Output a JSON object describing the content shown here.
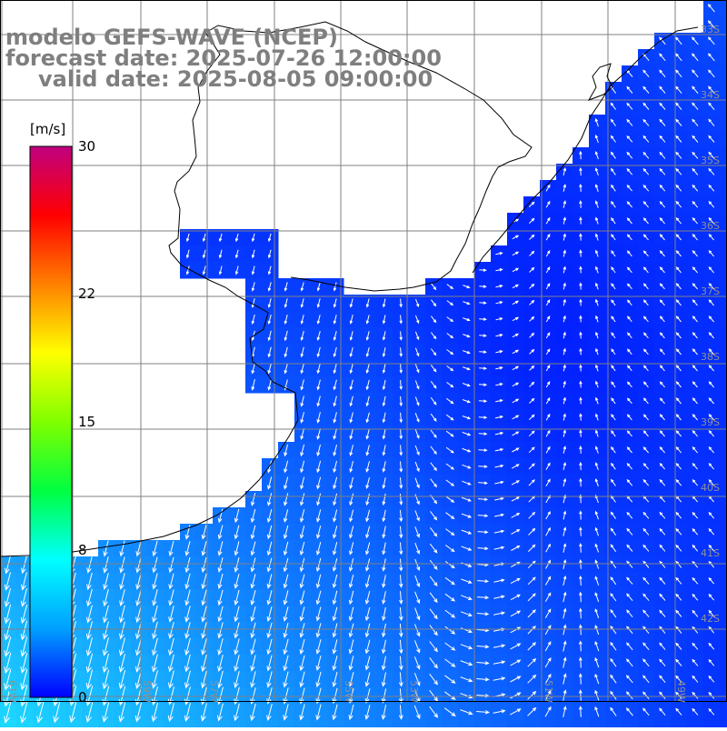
{
  "header": {
    "model": "modelo GEFS-WAVE (NCEP)",
    "forecast": "forecast date: 2025-07-26 12:00:00",
    "valid": "valid date: 2025-08-05 09:00:00"
  },
  "colorbar": {
    "unit": "[m/s]",
    "ticks": [
      "30",
      "22",
      "15",
      "8",
      "0"
    ],
    "tick_values": [
      30,
      22,
      15,
      8,
      0
    ],
    "min": 0,
    "max": 30,
    "colors": [
      "#0000ff",
      "#00a0ff",
      "#00ffff",
      "#00ff40",
      "#80ff00",
      "#ffff00",
      "#ff8000",
      "#ff0000",
      "#c00080"
    ]
  },
  "map": {
    "lon_labels": [
      "61W",
      "59W",
      "57W",
      "55W",
      "53W",
      "51W",
      "49W"
    ],
    "lat_labels": [
      "33S",
      "34S",
      "35S",
      "36S",
      "37S",
      "38S",
      "39S",
      "40S",
      "41S",
      "42S"
    ],
    "ocean_color_low": "#0010ff",
    "ocean_color_high": "#20f0ff",
    "land_color": "#ffffff",
    "grid_color": "#808080",
    "arrow_color": "#ffffff"
  }
}
